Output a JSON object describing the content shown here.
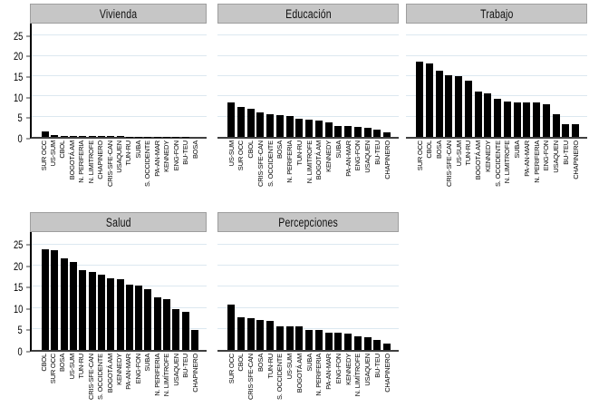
{
  "figure": {
    "background": "#ffffff",
    "header_bg": "#c6c6c6",
    "bar_color": "#000000",
    "gridline_color": "#dce8f0",
    "axis_color": "#3f3f3f",
    "y_axis_ticks": [
      0,
      5,
      10,
      15,
      20,
      25
    ]
  },
  "chart_data": [
    {
      "type": "bar",
      "title": "Vivienda",
      "xlabel": "",
      "ylabel": "",
      "ylim": [
        0,
        28
      ],
      "yticks": [
        0,
        5,
        10,
        15,
        20,
        25
      ],
      "grid": true,
      "legend": "none",
      "categories": [
        "SUR OCC",
        "US-SUM",
        "CBOL",
        "BOGOTÁ AM",
        "N. PERIFERIA",
        "N. LIMITROFE",
        "CHAPINERO",
        "CRIS-SFE-CAN",
        "USAQUEN",
        "TUN-RU",
        "SUBA",
        "S. OCCIDENTE",
        "PA-AN-MAR",
        "KENNEDY",
        "ENG-FON",
        "BU-TEU",
        "BOSA"
      ],
      "values": [
        1.3,
        0.5,
        0.25,
        0.25,
        0.2,
        0.2,
        0.2,
        0.2,
        0.15,
        0.1,
        0.1,
        0.1,
        0.1,
        0.05,
        0.05,
        0.05,
        0
      ]
    },
    {
      "type": "bar",
      "title": "Educación",
      "xlabel": "",
      "ylabel": "",
      "ylim": [
        0,
        28
      ],
      "yticks": [
        0,
        5,
        10,
        15,
        20,
        25
      ],
      "grid": true,
      "legend": "none",
      "categories": [
        "US-SUM",
        "SUR OCC",
        "CBOL",
        "CRIS-SFE-CAN",
        "S. OCCIDENTE",
        "BOSA",
        "N. PERIFERIA",
        "TUN-RU",
        "N. LIMITROFE",
        "BOGOTÁ AM",
        "KENNEDY",
        "SUBA",
        "PA-AN-MAR",
        "ENG-FON",
        "USAQUEN",
        "BU-TEU",
        "CHAPINERO"
      ],
      "values": [
        8.5,
        7.4,
        7.0,
        6.0,
        5.6,
        5.3,
        5.1,
        4.4,
        4.3,
        4.0,
        3.5,
        2.8,
        2.6,
        2.5,
        2.3,
        1.9,
        1.2
      ]
    },
    {
      "type": "bar",
      "title": "Trabajo",
      "xlabel": "",
      "ylabel": "",
      "ylim": [
        0,
        28
      ],
      "yticks": [
        0,
        5,
        10,
        15,
        20,
        25
      ],
      "grid": true,
      "legend": "none",
      "categories": [
        "SUR OCC",
        "CBOL",
        "BOSA",
        "CRIS-SFE-CAN",
        "US-SUM",
        "TUN-RU",
        "BOGOTÁ AM",
        "KENNEDY",
        "S. OCCIDENTE",
        "N. LIMITROFE",
        "SUBA",
        "PA-AN-MAR",
        "N. PERIFERIA",
        "ENG-FON",
        "USAQUEN",
        "BU-TEU",
        "CHAPINERO"
      ],
      "values": [
        18.5,
        18.2,
        16.3,
        15.3,
        15.0,
        13.8,
        11.2,
        10.7,
        9.5,
        8.7,
        8.6,
        8.5,
        8.5,
        8.0,
        5.6,
        3.2,
        3.1
      ]
    },
    {
      "type": "bar",
      "title": "Salud",
      "xlabel": "",
      "ylabel": "",
      "ylim": [
        0,
        28
      ],
      "yticks": [
        0,
        5,
        10,
        15,
        20,
        25
      ],
      "grid": true,
      "legend": "none",
      "categories": [
        "CBOL",
        "SUR OCC",
        "BOSA",
        "US-SUM",
        "TUN-RU",
        "CRIS-SFE-CAN",
        "S. OCCIDENTE",
        "BOGOTÁ AM",
        "KENNEDY",
        "PA-AN-MAR",
        "ENG-FON",
        "SUBA",
        "N. PERIFERIA",
        "N. LIMÍTROFE",
        "USAQUEN",
        "BU-TEU",
        "CHAPINERO"
      ],
      "values": [
        24.0,
        23.8,
        21.8,
        21.0,
        19.0,
        18.6,
        17.9,
        17.0,
        16.8,
        15.5,
        15.2,
        14.4,
        12.4,
        12.1,
        9.8,
        9.1,
        4.7
      ]
    },
    {
      "type": "bar",
      "title": "Percepciones",
      "xlabel": "",
      "ylabel": "",
      "ylim": [
        0,
        28
      ],
      "yticks": [
        0,
        5,
        10,
        15,
        20,
        25
      ],
      "grid": true,
      "legend": "none",
      "categories": [
        "SUR OCC",
        "CBOL",
        "CRIS-SFE-CAN",
        "BOSA",
        "TUN-RU",
        "S. OCCIDENTE",
        "US-SUM",
        "BOGOTÁ AM",
        "SUBA",
        "N. PERIFERIA",
        "PA-AN-MAR",
        "ENG-FON",
        "KENNEDY",
        "N. LIMÍTROFE",
        "USAQUEN",
        "BU-TEU",
        "CHAPINERO"
      ],
      "values": [
        10.8,
        7.7,
        7.6,
        7.2,
        6.8,
        5.7,
        5.6,
        5.5,
        4.8,
        4.7,
        4.1,
        4.0,
        3.9,
        3.3,
        3.1,
        2.3,
        1.6
      ]
    }
  ]
}
